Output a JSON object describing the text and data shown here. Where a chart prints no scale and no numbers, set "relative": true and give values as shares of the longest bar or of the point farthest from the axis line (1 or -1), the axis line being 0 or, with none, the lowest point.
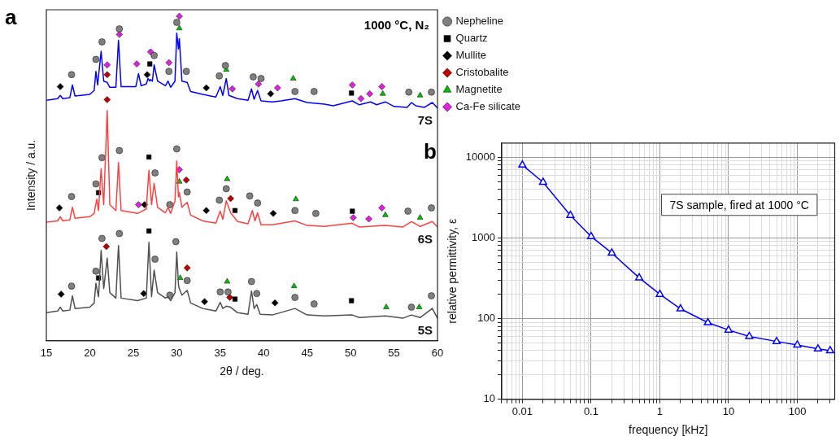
{
  "chart_data": [
    {
      "type": "line",
      "relative": true,
      "xlim": [
        15,
        60
      ],
      "xticks": [
        15,
        20,
        25,
        30,
        35,
        40,
        45,
        50,
        55,
        60
      ],
      "xlabel": "2θ / deg.",
      "ylabel": "Intensity / a.u.",
      "legend": "right",
      "annotations": [
        "a",
        "1000 °C, N₂"
      ],
      "series": [
        {
          "name": "7S",
          "color": "#0000ff",
          "x": [
            15,
            16.3,
            16.6,
            16.9,
            17.7,
            18.0,
            18.3,
            20.0,
            20.5,
            20.7,
            20.9,
            21.3,
            21.6,
            22.0,
            22.3,
            23.0,
            23.3,
            23.6,
            25.3,
            25.6,
            25.9,
            26.5,
            26.7,
            26.9,
            27.0,
            27.2,
            27.4,
            27.8,
            28.7,
            29.0,
            29.3,
            29.8,
            30.0,
            30.2,
            30.3,
            30.6,
            31.2,
            31.6,
            33,
            34.5,
            35.0,
            35.3,
            35.7,
            36.0,
            37,
            38.2,
            38.6,
            38.9,
            39.3,
            39.7,
            41,
            42,
            43.6,
            45,
            47,
            48,
            50.2,
            51,
            52.3,
            53,
            54,
            55,
            56.5,
            57,
            57.5,
            58.5,
            59.4,
            60
          ],
          "values": [
            0.741,
            0.746,
            0.756,
            0.746,
            0.749,
            0.788,
            0.754,
            0.759,
            0.771,
            0.83,
            0.788,
            0.892,
            0.8,
            0.796,
            0.781,
            0.781,
            0.926,
            0.783,
            0.783,
            0.823,
            0.786,
            0.791,
            0.808,
            0.8,
            0.805,
            0.8,
            0.85,
            0.8,
            0.786,
            0.8,
            0.781,
            0.8,
            0.948,
            0.899,
            0.931,
            0.8,
            0.796,
            0.768,
            0.759,
            0.751,
            0.783,
            0.756,
            0.808,
            0.756,
            0.746,
            0.741,
            0.776,
            0.744,
            0.771,
            0.739,
            0.736,
            0.739,
            0.746,
            0.734,
            0.729,
            0.724,
            0.739,
            0.727,
            0.736,
            0.727,
            0.736,
            0.722,
            0.719,
            0.734,
            0.724,
            0.719,
            0.734,
            0.717
          ]
        },
        {
          "name": "6S",
          "color": "#ff4040",
          "x": [
            15,
            16.3,
            16.6,
            16.9,
            17.7,
            18.0,
            18.3,
            20.0,
            20.5,
            20.8,
            21.0,
            21.3,
            21.6,
            22.0,
            22.3,
            23.0,
            23.3,
            23.6,
            25.5,
            26.0,
            26.5,
            26.8,
            27.1,
            27.4,
            27.8,
            28.7,
            29.0,
            29.3,
            29.8,
            30.0,
            30.2,
            30.3,
            30.6,
            31.2,
            31.6,
            33,
            34.5,
            35.0,
            35.3,
            35.7,
            36.2,
            37,
            38.2,
            38.7,
            39.0,
            39.3,
            39.7,
            41,
            43.6,
            45,
            47,
            50.2,
            51,
            54,
            56,
            57,
            58,
            59.4,
            60
          ],
          "values": [
            0.365,
            0.369,
            0.382,
            0.369,
            0.372,
            0.411,
            0.377,
            0.382,
            0.392,
            0.436,
            0.401,
            0.53,
            0.419,
            0.709,
            0.419,
            0.401,
            0.549,
            0.401,
            0.392,
            0.399,
            0.406,
            0.525,
            0.419,
            0.485,
            0.411,
            0.394,
            0.411,
            0.392,
            0.431,
            0.554,
            0.443,
            0.456,
            0.411,
            0.426,
            0.387,
            0.369,
            0.362,
            0.399,
            0.374,
            0.431,
            0.394,
            0.367,
            0.36,
            0.401,
            0.369,
            0.394,
            0.357,
            0.357,
            0.369,
            0.355,
            0.352,
            0.362,
            0.35,
            0.355,
            0.35,
            0.367,
            0.352,
            0.367,
            0.35
          ]
        },
        {
          "name": "5S",
          "color": "#505050",
          "x": [
            15,
            16.3,
            16.6,
            16.9,
            17.7,
            18.0,
            18.3,
            20.0,
            20.5,
            20.7,
            21.0,
            21.3,
            21.6,
            22.0,
            22.3,
            23.0,
            23.3,
            23.6,
            25.5,
            26.5,
            26.8,
            27.1,
            27.4,
            27.8,
            28.7,
            29.0,
            29.3,
            29.8,
            30.0,
            30.2,
            30.3,
            30.6,
            31.2,
            31.6,
            33,
            34.5,
            35.0,
            35.3,
            35.7,
            36.2,
            37,
            38.2,
            38.6,
            38.9,
            39.2,
            39.6,
            41,
            43.6,
            45,
            47,
            50.2,
            51,
            54,
            56,
            57,
            58,
            59.4,
            60
          ],
          "values": [
            0.086,
            0.091,
            0.103,
            0.091,
            0.094,
            0.138,
            0.099,
            0.103,
            0.116,
            0.177,
            0.135,
            0.278,
            0.16,
            0.254,
            0.148,
            0.131,
            0.293,
            0.131,
            0.123,
            0.131,
            0.303,
            0.135,
            0.217,
            0.148,
            0.131,
            0.135,
            0.123,
            0.148,
            0.273,
            0.172,
            0.16,
            0.14,
            0.155,
            0.116,
            0.099,
            0.091,
            0.118,
            0.099,
            0.106,
            0.103,
            0.086,
            0.081,
            0.153,
            0.099,
            0.111,
            0.081,
            0.079,
            0.099,
            0.079,
            0.076,
            0.079,
            0.071,
            0.076,
            0.069,
            0.079,
            0.071,
            0.099,
            0.069
          ]
        },
        {
          "name": "Nepheline",
          "type": "scatter",
          "marker": "circle",
          "color": "#7f7f7f",
          "x": [
            17.9,
            20.7,
            21.4,
            23.4,
            27.4,
            29.1,
            30.0,
            31.1,
            34.9,
            35.6,
            38.8,
            39.7,
            43.6,
            45.8,
            56.7,
            59.3,
            23.4,
            21.4,
            20.7,
            17.9,
            27.5,
            29.2,
            30.0,
            31.2,
            34.9,
            35.7,
            38.4,
            39.3,
            43.6,
            46.0,
            56.6,
            59.3,
            17.9,
            20.7,
            21.4,
            23.4,
            27.5,
            29.2,
            29.9,
            31.2,
            35.0,
            35.9,
            38.6,
            39.2,
            43.6,
            45.8,
            57.0,
            59.3
          ],
          "values": [
            0.82,
            0.867,
            0.921,
            0.961,
            0.879,
            0.83,
            0.981,
            0.83,
            0.816,
            0.848,
            0.813,
            0.808,
            0.768,
            0.768,
            0.766,
            0.766,
            0.586,
            0.564,
            0.483,
            0.444,
            0.517,
            0.419,
            0.591,
            0.458,
            0.433,
            0.468,
            0.446,
            0.424,
            0.401,
            0.392,
            0.399,
            0.409,
            0.168,
            0.214,
            0.315,
            0.33,
            0.251,
            0.14,
            0.305,
            0.185,
            0.15,
            0.15,
            0.182,
            0.145,
            0.133,
            0.113,
            0.103,
            0.138
          ]
        },
        {
          "name": "Quartz",
          "type": "scatter",
          "marker": "square",
          "color": "#000000",
          "x": [
            26.9,
            50.1,
            21.0,
            26.8,
            36.7,
            50.2,
            21.0,
            26.8,
            36.7,
            50.1
          ],
          "values": [
            0.853,
            0.763,
            0.456,
            0.566,
            0.401,
            0.399,
            0.193,
            0.338,
            0.128,
            0.123
          ]
        },
        {
          "name": "Mullite",
          "type": "scatter",
          "marker": "diamond",
          "color": "#000000",
          "x": [
            16.6,
            26.6,
            33.4,
            40.8,
            16.5,
            26.3,
            33.4,
            41.1,
            16.7,
            26.2,
            33.2,
            41.3
          ],
          "values": [
            0.783,
            0.82,
            0.779,
            0.761,
            0.409,
            0.419,
            0.401,
            0.392,
            0.143,
            0.145,
            0.12,
            0.116
          ]
        },
        {
          "name": "Cristobalite",
          "type": "scatter",
          "marker": "diamond",
          "color": "#c00000",
          "x": [
            22.0,
            22.0,
            31.1,
            36.2,
            21.9,
            31.2,
            36.1
          ],
          "values": [
            0.82,
            0.743,
            0.495,
            0.438,
            0.29,
            0.224,
            0.133
          ]
        },
        {
          "name": "Magnetite",
          "type": "scatter",
          "marker": "triangle",
          "color": "#00c000",
          "x": [
            30.3,
            35.7,
            43.4,
            53.7,
            58.0,
            30.3,
            35.8,
            43.7,
            54.0,
            58.0,
            30.4,
            35.8,
            43.5,
            54.1,
            57.9
          ],
          "values": [
            0.963,
            0.835,
            0.808,
            0.761,
            0.756,
            0.49,
            0.498,
            0.436,
            0.387,
            0.379,
            0.193,
            0.182,
            0.168,
            0.103,
            0.103
          ]
        },
        {
          "name": "Ca-Fe silicate",
          "type": "scatter",
          "marker": "diamond",
          "color": "#e020e0",
          "x": [
            22.0,
            23.4,
            25.4,
            27.0,
            29.1,
            30.3,
            36.4,
            39.4,
            41.6,
            50.2,
            51.2,
            52.2,
            53.6,
            25.6,
            30.3,
            50.3,
            52.1,
            53.6
          ],
          "values": [
            0.85,
            0.944,
            0.853,
            0.89,
            0.857,
            1,
            0.776,
            0.791,
            0.779,
            0.788,
            0.746,
            0.761,
            0.783,
            0.419,
            0.527,
            0.379,
            0.375,
            0.409
          ]
        }
      ]
    },
    {
      "type": "line",
      "log": "xy",
      "xlim": [
        0.005,
        350
      ],
      "ylim": [
        10,
        15000
      ],
      "xticks": [
        0.01,
        0.1,
        1,
        10,
        100
      ],
      "yticks": [
        10,
        100,
        1000,
        10000
      ],
      "grid": true,
      "marker": "triangle",
      "color": "#0000ff",
      "xlabel": "frequency [kHz]",
      "ylabel": "relative permittivity, ε",
      "annotations": [
        "b",
        "7S sample, fired at 1000 °C"
      ],
      "x": [
        0.01,
        0.02,
        0.05,
        0.1,
        0.2,
        0.5,
        1,
        2,
        5,
        10,
        20,
        50,
        100,
        200,
        300
      ],
      "values": [
        8000,
        4900,
        1900,
        1040,
        650,
        320,
        200,
        132,
        89,
        72,
        60,
        52,
        47,
        42,
        40
      ]
    }
  ]
}
